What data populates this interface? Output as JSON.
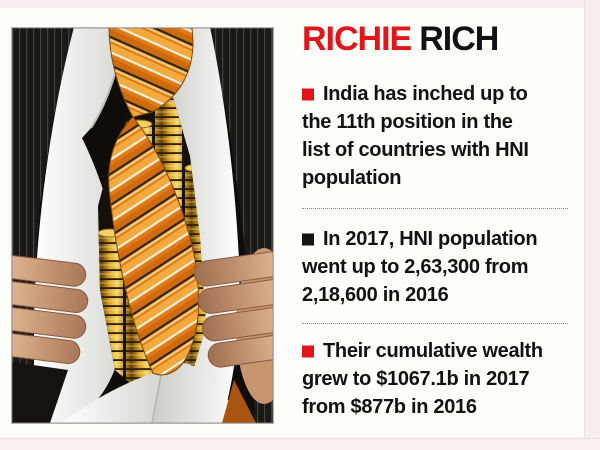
{
  "infographic": {
    "title": {
      "word1": "RICHIE",
      "word2": "RICH"
    },
    "title_colors": {
      "word1": "#e2151b",
      "word2": "#121212"
    },
    "bullets": [
      {
        "marker_color": "#e2151b",
        "lines": [
          "India has inched up to",
          "the 11th position in the",
          "list of countries with HNI",
          "population"
        ]
      },
      {
        "marker_color": "#141414",
        "lines": [
          "In 2017, HNI population",
          "went up to 2,63,300 from",
          "2,18,600 in 2016"
        ]
      },
      {
        "marker_color": "#e2151b",
        "lines": [
          "Their cumulative wealth",
          "grew to $1067.1b in 2017",
          "from $877b in 2016"
        ]
      }
    ],
    "photo": {
      "description": "Businessman in dark pinstripe suit and orange striped tie pulling open his white shirt to reveal stacks of gold coins"
    },
    "colors": {
      "page_bg": "#fdfdf9",
      "frame_pink": "#f6edef",
      "accent_red": "#e2151b",
      "text_black": "#121212",
      "divider_grey": "#8a8a8a",
      "coin_gold": "#e8b83a",
      "tie_orange": "#e07a16"
    }
  }
}
